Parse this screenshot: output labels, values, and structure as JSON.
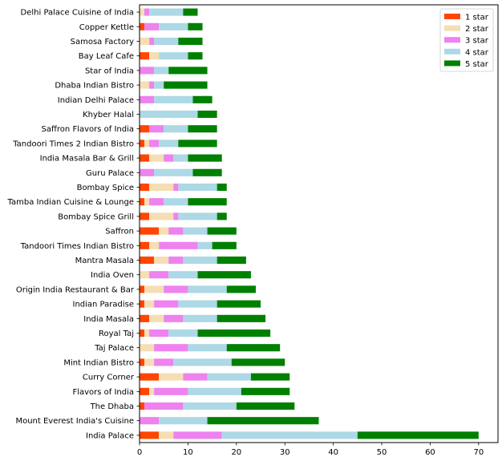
{
  "chart_data": {
    "type": "bar",
    "orientation": "horizontal",
    "stacked": true,
    "categories": [
      "India Palace",
      "Mount Everest India's Cuisine",
      "The Dhaba",
      "Flavors of India",
      "Curry Corner",
      "Mint Indian Bistro",
      "Taj Palace",
      "Royal Taj",
      "India Masala",
      "Indian Paradise",
      "Origin India Restaurant & Bar",
      "India Oven",
      "Mantra Masala",
      "Tandoori Times Indian Bistro",
      "Saffron",
      "Bombay Spice Grill",
      "Tamba Indian Cuisine & Lounge",
      "Bombay Spice",
      "Guru Palace",
      "India Masala Bar & Grill",
      "Tandoori Times 2 Indian Bistro",
      "Saffron Flavors of India",
      "Khyber Halal",
      "Indian Delhi Palace",
      "Dhaba Indian Bistro",
      "Star of India",
      "Bay Leaf Cafe",
      "Samosa Factory",
      "Copper Kettle",
      "Delhi Palace Cuisine of India"
    ],
    "series": [
      {
        "name": "1 star",
        "color": "#ff4500",
        "values": [
          4,
          0,
          1,
          2,
          4,
          1,
          0,
          1,
          2,
          1,
          1,
          0,
          3,
          2,
          4,
          2,
          1,
          2,
          0,
          2,
          1,
          2,
          0,
          0,
          0,
          0,
          2,
          0,
          1,
          0
        ]
      },
      {
        "name": "2 star",
        "color": "#f5deb3",
        "values": [
          3,
          0,
          0,
          1,
          5,
          2,
          3,
          1,
          3,
          2,
          4,
          2,
          3,
          2,
          2,
          5,
          1,
          5,
          0,
          3,
          1,
          0,
          0,
          0,
          2,
          0,
          2,
          2,
          0,
          1
        ]
      },
      {
        "name": "3 star",
        "color": "#ee82ee",
        "values": [
          10,
          4,
          8,
          7,
          5,
          4,
          7,
          4,
          4,
          5,
          5,
          4,
          3,
          8,
          3,
          1,
          3,
          1,
          3,
          2,
          2,
          3,
          0,
          3,
          1,
          3,
          0,
          1,
          3,
          1
        ]
      },
      {
        "name": "4 star",
        "color": "#add8e6",
        "values": [
          28,
          10,
          11,
          11,
          9,
          12,
          8,
          6,
          7,
          8,
          8,
          6,
          7,
          3,
          5,
          8,
          5,
          8,
          8,
          3,
          4,
          5,
          12,
          8,
          2,
          3,
          6,
          5,
          6,
          7
        ]
      },
      {
        "name": "5 star",
        "color": "#008000",
        "values": [
          25,
          23,
          12,
          10,
          8,
          11,
          11,
          15,
          10,
          9,
          6,
          11,
          6,
          5,
          6,
          2,
          8,
          2,
          6,
          7,
          8,
          6,
          4,
          4,
          9,
          8,
          3,
          5,
          3,
          3
        ]
      }
    ],
    "xlim": [
      0,
      74
    ],
    "xticks": [
      0,
      10,
      20,
      30,
      40,
      50,
      60,
      70
    ],
    "xlabel": "",
    "ylabel": "",
    "title": "",
    "grid": false,
    "legend_position": "top-right"
  }
}
